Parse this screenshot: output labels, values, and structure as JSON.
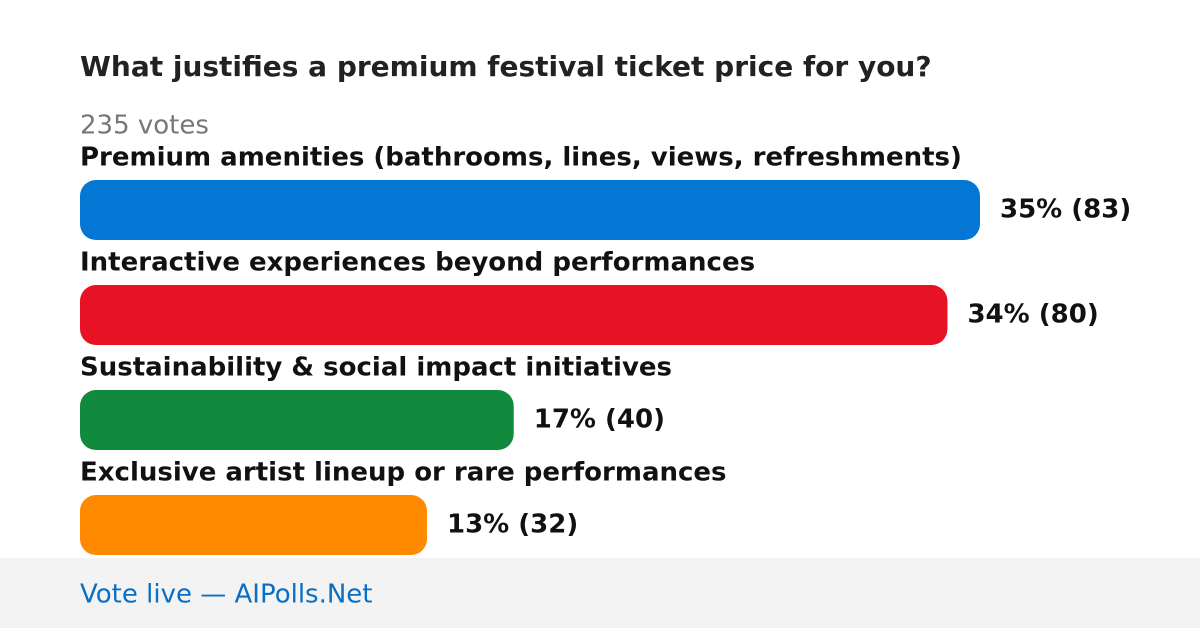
{
  "chart_data": {
    "type": "bar",
    "orientation": "horizontal",
    "title": "What justifies a premium festival ticket price for you?",
    "subtitle": "235 votes",
    "categories": [
      "Premium amenities (bathrooms, lines, views, refreshments)",
      "Interactive experiences beyond performances",
      "Sustainability & social impact initiatives",
      "Exclusive artist lineup or rare performances"
    ],
    "values": [
      83,
      80,
      40,
      32
    ],
    "value_labels": [
      "35% (83)",
      "34% (80)",
      "17% (40)",
      "13% (32)"
    ],
    "colors": [
      "#0477d4",
      "#e81225",
      "#128a3e",
      "#ff8a00"
    ]
  },
  "footer": "Vote live — AIPolls.Net"
}
